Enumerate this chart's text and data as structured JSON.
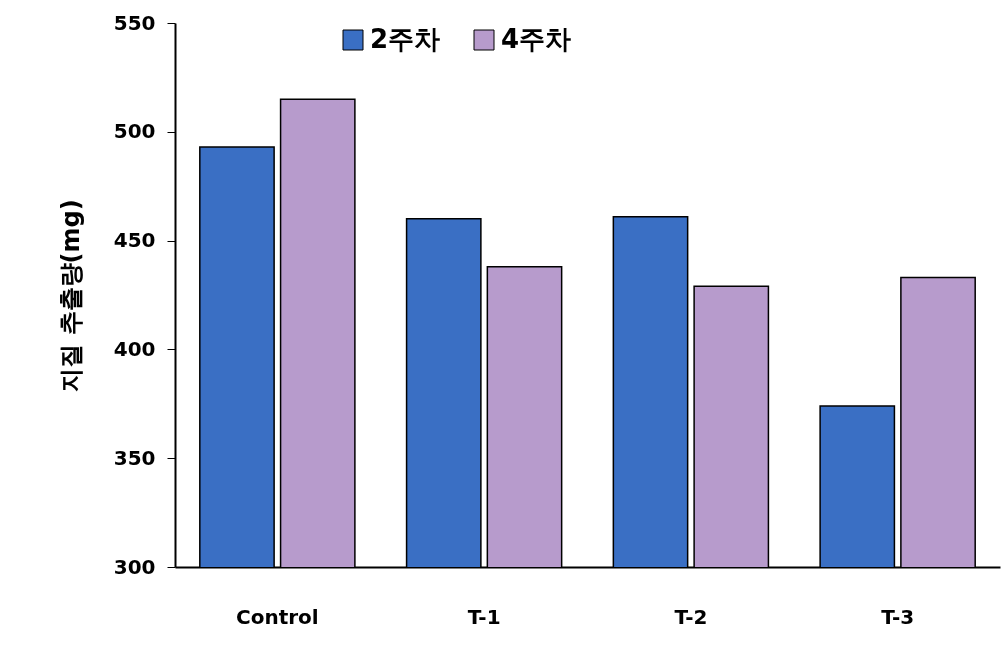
{
  "chart_data": {
    "type": "bar",
    "ylabel": "지질 추출량(mg)",
    "categories": [
      "Control",
      "T-1",
      "T-2",
      "T-3"
    ],
    "series": [
      {
        "name": "2주차",
        "color": "#3a6fc4",
        "values": [
          493,
          460,
          461,
          374
        ]
      },
      {
        "name": "4주차",
        "color": "#b79bcc",
        "values": [
          515,
          438,
          429,
          433
        ]
      }
    ],
    "ylim": [
      300,
      550
    ],
    "yticks": [
      300,
      350,
      400,
      450,
      500,
      550
    ],
    "grid": false,
    "legend": "top"
  }
}
